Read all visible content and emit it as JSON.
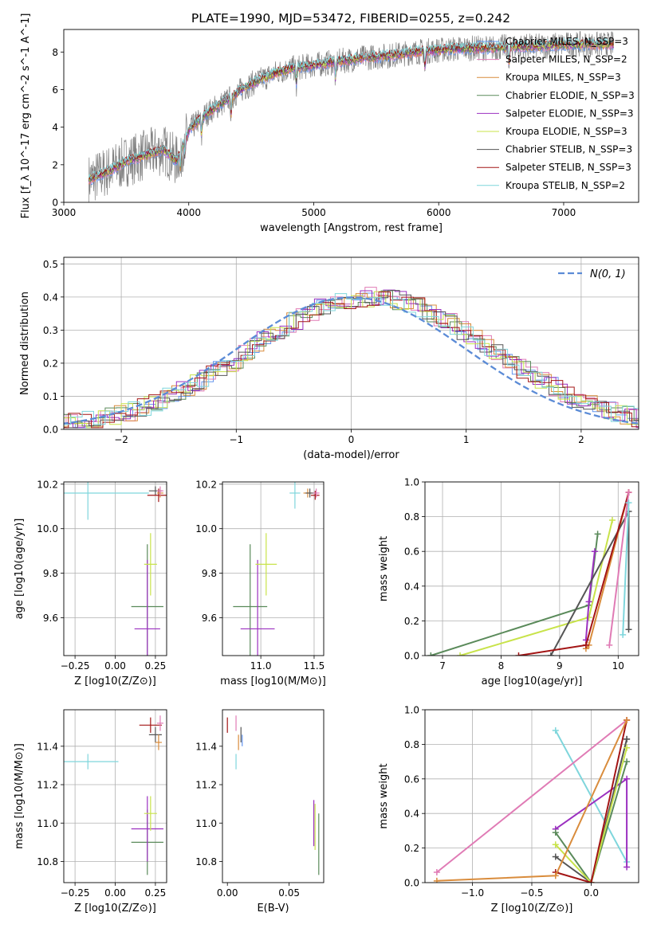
{
  "figure": {
    "title": "PLATE=1990, MJD=53472, FIBERID=0255, z=0.242"
  },
  "palette": {
    "chabrier_miles": "#6495ed",
    "salpeter_miles": "#e07bb5",
    "kroupa_miles": "#d98c3c",
    "chabrier_elodie": "#5a8a5a",
    "salpeter_elodie": "#9b30c0",
    "kroupa_elodie": "#c8e34a",
    "chabrier_stelib": "#555555",
    "salpeter_stelib": "#a31515",
    "kroupa_stelib": "#7fd6dc",
    "spectrum": "#808080",
    "normal": "#5b8bd6"
  },
  "chart_data": [
    {
      "id": "spectrum",
      "type": "line",
      "xlabel": "wavelength [Angstrom, rest frame]",
      "ylabel": "Flux [f_λ 10^-17 erg cm^-2 s^-1 A^-1]",
      "xlim": [
        3000,
        7600
      ],
      "ylim": [
        0,
        9.2
      ],
      "xticks": [
        3000,
        4000,
        5000,
        6000,
        7000
      ],
      "yticks": [
        0,
        2,
        4,
        6,
        8
      ],
      "grid": false,
      "legend_position": "top-right",
      "continuum": {
        "x": [
          3200,
          3300,
          3400,
          3500,
          3600,
          3700,
          3800,
          3900,
          4000,
          4100,
          4200,
          4300,
          4400,
          4500,
          4600,
          4700,
          4800,
          5000,
          5200,
          5400,
          5600,
          5800,
          6000,
          6200,
          6400,
          6600,
          6800,
          7000,
          7200,
          7400
        ],
        "y": [
          1.2,
          1.5,
          1.8,
          2.2,
          2.4,
          2.6,
          2.8,
          2.2,
          3.8,
          4.5,
          5.0,
          5.4,
          5.9,
          6.3,
          6.6,
          6.9,
          7.1,
          7.3,
          7.5,
          7.7,
          7.8,
          8.0,
          8.1,
          8.2,
          8.2,
          8.3,
          8.3,
          8.4,
          8.4,
          8.4
        ]
      },
      "series": [
        {
          "name": "Chabrier MILES, N_SSP=3",
          "color_key": "chabrier_miles"
        },
        {
          "name": "Salpeter MILES, N_SSP=2",
          "color_key": "salpeter_miles"
        },
        {
          "name": "Kroupa MILES, N_SSP=3",
          "color_key": "kroupa_miles"
        },
        {
          "name": "Chabrier ELODIE, N_SSP=3",
          "color_key": "chabrier_elodie"
        },
        {
          "name": "Salpeter ELODIE, N_SSP=3",
          "color_key": "salpeter_elodie"
        },
        {
          "name": "Kroupa ELODIE, N_SSP=3",
          "color_key": "kroupa_elodie"
        },
        {
          "name": "Chabrier STELIB, N_SSP=3",
          "color_key": "chabrier_stelib"
        },
        {
          "name": "Salpeter STELIB, N_SSP=3",
          "color_key": "salpeter_stelib"
        },
        {
          "name": "Kroupa STELIB, N_SSP=2",
          "color_key": "kroupa_stelib"
        }
      ]
    },
    {
      "id": "residuals",
      "type": "line",
      "xlabel": "(data-model)/error",
      "ylabel": "Normed distribution",
      "xlim": [
        -2.5,
        2.5
      ],
      "ylim": [
        0,
        0.52
      ],
      "xticks": [
        -2,
        -1,
        0,
        1,
        2
      ],
      "yticks": [
        0.0,
        0.1,
        0.2,
        0.3,
        0.4,
        0.5
      ],
      "grid": true,
      "legend_position": "top-right",
      "normal_label": "N(0, 1)"
    },
    {
      "id": "age_vs_Z",
      "type": "scatter",
      "xlabel": "Z [log10(Z/Z⊙)]",
      "ylabel": "age [log10(age/yr)]",
      "xlim": [
        -0.32,
        0.32
      ],
      "ylim": [
        9.43,
        10.21
      ],
      "xticks": [
        -0.25,
        0.0,
        0.25
      ],
      "yticks": [
        9.6,
        9.8,
        10.0,
        10.2
      ],
      "grid": true,
      "points": [
        {
          "color_key": "kroupa_stelib",
          "x": -0.17,
          "xerr": 0.38,
          "y": 10.16,
          "yerr": 0.12
        },
        {
          "color_key": "chabrier_elodie",
          "x": 0.2,
          "xerr": 0.1,
          "y": 9.65,
          "yerr": 0.28
        },
        {
          "color_key": "salpeter_elodie",
          "x": 0.2,
          "xerr": 0.08,
          "y": 9.55,
          "yerr": 0.31
        },
        {
          "color_key": "kroupa_elodie",
          "x": 0.22,
          "xerr": 0.04,
          "y": 9.84,
          "yerr": 0.14
        },
        {
          "color_key": "chabrier_stelib",
          "x": 0.25,
          "xerr": 0.04,
          "y": 10.17,
          "yerr": 0.02
        },
        {
          "color_key": "salpeter_stelib",
          "x": 0.27,
          "xerr": 0.07,
          "y": 10.15,
          "yerr": 0.03
        },
        {
          "color_key": "kroupa_miles",
          "x": 0.28,
          "xerr": 0.02,
          "y": 10.16,
          "yerr": 0.02
        },
        {
          "color_key": "salpeter_miles",
          "x": 0.28,
          "xerr": 0.02,
          "y": 10.17,
          "yerr": 0.02
        }
      ]
    },
    {
      "id": "age_vs_mass",
      "type": "scatter",
      "xlabel": "mass [log10(M/M⊙)]",
      "ylabel": "",
      "xlim": [
        10.64,
        11.59
      ],
      "ylim": [
        9.43,
        10.21
      ],
      "xticks": [
        11.0,
        11.5
      ],
      "yticks": [
        9.6,
        9.8,
        10.0,
        10.2
      ],
      "grid": true,
      "points": [
        {
          "color_key": "kroupa_stelib",
          "x": 11.32,
          "xerr": 0.05,
          "y": 10.16,
          "yerr": 0.07
        },
        {
          "color_key": "chabrier_elodie",
          "x": 10.9,
          "xerr": 0.16,
          "y": 9.65,
          "yerr": 0.28
        },
        {
          "color_key": "salpeter_elodie",
          "x": 10.97,
          "xerr": 0.16,
          "y": 9.55,
          "yerr": 0.31
        },
        {
          "color_key": "kroupa_elodie",
          "x": 11.05,
          "xerr": 0.1,
          "y": 9.84,
          "yerr": 0.14
        },
        {
          "color_key": "kroupa_miles",
          "x": 11.44,
          "xerr": 0.04,
          "y": 10.16,
          "yerr": 0.02
        },
        {
          "color_key": "chabrier_stelib",
          "x": 11.46,
          "xerr": 0.04,
          "y": 10.16,
          "yerr": 0.02
        },
        {
          "color_key": "salpeter_stelib",
          "x": 11.51,
          "xerr": 0.04,
          "y": 10.15,
          "yerr": 0.02
        },
        {
          "color_key": "salpeter_miles",
          "x": 11.52,
          "xerr": 0.03,
          "y": 10.16,
          "yerr": 0.02
        }
      ]
    },
    {
      "id": "weight_vs_age",
      "type": "line",
      "xlabel": "age [log10(age/yr)]",
      "ylabel": "mass weight",
      "xlim": [
        6.7,
        10.35
      ],
      "ylim": [
        0,
        1.0
      ],
      "xticks": [
        7,
        8,
        9,
        10
      ],
      "yticks": [
        0.0,
        0.2,
        0.4,
        0.6,
        0.8,
        1.0
      ],
      "grid": true,
      "series": [
        {
          "color_key": "chabrier_elodie",
          "x": [
            6.8,
            9.5,
            9.65
          ],
          "y": [
            0.0,
            0.29,
            0.7
          ]
        },
        {
          "color_key": "kroupa_elodie",
          "x": [
            7.3,
            9.5,
            9.9
          ],
          "y": [
            0.0,
            0.22,
            0.78
          ]
        },
        {
          "color_key": "salpeter_elodie",
          "x": [
            9.45,
            9.5,
            9.6
          ],
          "y": [
            0.09,
            0.31,
            0.6
          ]
        },
        {
          "color_key": "kroupa_miles",
          "x": [
            9.45,
            9.5,
            10.18
          ],
          "y": [
            0.04,
            0.06,
            0.94
          ]
        },
        {
          "color_key": "chabrier_stelib",
          "x": [
            8.85,
            10.18,
            10.18
          ],
          "y": [
            0.0,
            0.83,
            0.15
          ]
        },
        {
          "color_key": "salpeter_stelib",
          "x": [
            8.3,
            9.45,
            10.18
          ],
          "y": [
            0.0,
            0.06,
            0.94
          ]
        },
        {
          "color_key": "salpeter_miles",
          "x": [
            9.85,
            10.18
          ],
          "y": [
            0.06,
            0.94
          ]
        },
        {
          "color_key": "kroupa_stelib",
          "x": [
            10.08,
            10.18
          ],
          "y": [
            0.12,
            0.88
          ]
        }
      ]
    },
    {
      "id": "mass_vs_Z",
      "type": "scatter",
      "xlabel": "Z [log10(Z/Z⊙)]",
      "ylabel": "mass [log10(M/M⊙)]",
      "xlim": [
        -0.32,
        0.32
      ],
      "ylim": [
        10.69,
        11.59
      ],
      "xticks": [
        -0.25,
        0.0,
        0.25
      ],
      "yticks": [
        10.8,
        11.0,
        11.2,
        11.4
      ],
      "grid": true,
      "points": [
        {
          "color_key": "kroupa_stelib",
          "x": -0.17,
          "xerr": 0.19,
          "y": 11.32,
          "yerr": 0.04
        },
        {
          "color_key": "chabrier_elodie",
          "x": 0.2,
          "xerr": 0.1,
          "y": 10.9,
          "yerr": 0.17
        },
        {
          "color_key": "salpeter_elodie",
          "x": 0.2,
          "xerr": 0.1,
          "y": 10.97,
          "yerr": 0.17
        },
        {
          "color_key": "kroupa_elodie",
          "x": 0.22,
          "xerr": 0.04,
          "y": 11.05,
          "yerr": 0.09
        },
        {
          "color_key": "salpeter_stelib",
          "x": 0.22,
          "xerr": 0.07,
          "y": 11.51,
          "yerr": 0.04
        },
        {
          "color_key": "chabrier_stelib",
          "x": 0.25,
          "xerr": 0.04,
          "y": 11.46,
          "yerr": 0.04
        },
        {
          "color_key": "kroupa_miles",
          "x": 0.27,
          "xerr": 0.02,
          "y": 11.42,
          "yerr": 0.04
        },
        {
          "color_key": "salpeter_miles",
          "x": 0.28,
          "xerr": 0.02,
          "y": 11.52,
          "yerr": 0.04
        }
      ]
    },
    {
      "id": "mass_vs_ebv",
      "type": "scatter",
      "xlabel": "E(B-V)",
      "ylabel": "",
      "xlim": [
        -0.004,
        0.078
      ],
      "ylim": [
        10.69,
        11.59
      ],
      "xticks": [
        0.0,
        0.05
      ],
      "yticks": [
        10.8,
        11.0,
        11.2,
        11.4
      ],
      "grid": false,
      "points": [
        {
          "color_key": "salpeter_stelib",
          "x": 0.0,
          "xerr": 0.0,
          "y": 11.51,
          "yerr": 0.04
        },
        {
          "color_key": "salpeter_miles",
          "x": 0.007,
          "xerr": 0.0,
          "y": 11.52,
          "yerr": 0.04
        },
        {
          "color_key": "kroupa_miles",
          "x": 0.009,
          "xerr": 0.0,
          "y": 11.42,
          "yerr": 0.04
        },
        {
          "color_key": "chabrier_stelib",
          "x": 0.011,
          "xerr": 0.0,
          "y": 11.46,
          "yerr": 0.04
        },
        {
          "color_key": "chabrier_miles",
          "x": 0.012,
          "xerr": 0.0,
          "y": 11.43,
          "yerr": 0.03
        },
        {
          "color_key": "kroupa_stelib",
          "x": 0.007,
          "xerr": 0.0,
          "y": 11.32,
          "yerr": 0.04
        },
        {
          "color_key": "salpeter_elodie",
          "x": 0.07,
          "xerr": 0.0,
          "y": 11.0,
          "yerr": 0.12
        },
        {
          "color_key": "kroupa_elodie",
          "x": 0.071,
          "xerr": 0.0,
          "y": 10.98,
          "yerr": 0.12
        },
        {
          "color_key": "chabrier_elodie",
          "x": 0.074,
          "xerr": 0.0,
          "y": 10.89,
          "yerr": 0.16
        }
      ]
    },
    {
      "id": "weight_vs_Z",
      "type": "line",
      "xlabel": "Z [log10(Z/Z⊙)]",
      "ylabel": "mass weight",
      "xlim": [
        -1.4,
        0.4
      ],
      "ylim": [
        0,
        1.0
      ],
      "xticks": [
        -1.0,
        -0.5,
        0.0
      ],
      "yticks": [
        0.0,
        0.2,
        0.4,
        0.6,
        0.8,
        1.0
      ],
      "grid": true,
      "series": [
        {
          "color_key": "kroupa_stelib",
          "x": [
            -0.3,
            0.3
          ],
          "y": [
            0.88,
            0.12
          ]
        },
        {
          "color_key": "salpeter_miles",
          "x": [
            -1.3,
            0.3
          ],
          "y": [
            0.06,
            0.94
          ]
        },
        {
          "color_key": "salpeter_elodie",
          "x": [
            -0.3,
            0.3,
            0.3
          ],
          "y": [
            0.31,
            0.6,
            0.09
          ]
        },
        {
          "color_key": "chabrier_stelib",
          "x": [
            -0.3,
            0.0,
            0.3,
            0.3
          ],
          "y": [
            0.15,
            0.0,
            0.83,
            0.83
          ]
        },
        {
          "color_key": "chabrier_elodie",
          "x": [
            -0.3,
            0.0,
            0.3
          ],
          "y": [
            0.29,
            0.0,
            0.7
          ]
        },
        {
          "color_key": "kroupa_elodie",
          "x": [
            -0.3,
            0.0,
            0.3
          ],
          "y": [
            0.22,
            0.0,
            0.78
          ]
        },
        {
          "color_key": "salpeter_stelib",
          "x": [
            -0.3,
            0.0,
            0.3
          ],
          "y": [
            0.06,
            0.0,
            0.94
          ]
        },
        {
          "color_key": "kroupa_miles",
          "x": [
            -1.3,
            -0.3,
            0.3
          ],
          "y": [
            0.01,
            0.04,
            0.94
          ]
        }
      ]
    }
  ]
}
